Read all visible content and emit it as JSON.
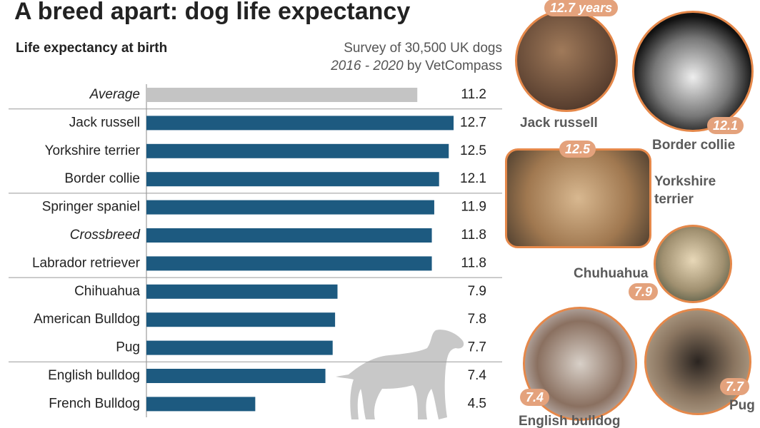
{
  "chart_data": {
    "type": "bar",
    "title": "A breed apart: dog life expectancy",
    "subtitle": "Life expectancy at birth",
    "source": "Survey of 30,500 UK dogs",
    "source_detail": "2016 - 2020",
    "source_org": "by VetCompass",
    "categories": [
      "Average",
      "Jack russell",
      "Yorkshire terrier",
      "Border collie",
      "Springer spaniel",
      "Crossbreed",
      "Labrador retriever",
      "Chihuahua",
      "American Bulldog",
      "Pug",
      "English bulldog",
      "French Bulldog"
    ],
    "values": [
      11.2,
      12.7,
      12.5,
      12.1,
      11.9,
      11.8,
      11.8,
      7.9,
      7.8,
      7.7,
      7.4,
      4.5
    ],
    "colors": [
      "#c4c4c4",
      "#1d5a80",
      "#1d5a80",
      "#1d5a80",
      "#1d5a80",
      "#1d5a80",
      "#1d5a80",
      "#1d5a80",
      "#1d5a80",
      "#1d5a80",
      "#1d5a80",
      "#1d5a80"
    ]
  },
  "photo_callouts": [
    {
      "name": "Jack russell",
      "badge": "12.7 years"
    },
    {
      "name": "Border collie",
      "badge": "12.1"
    },
    {
      "name": "Yorkshire terrier",
      "badge": "12.5"
    },
    {
      "name": "Chuhuahua",
      "badge": "7.9"
    },
    {
      "name": "English bulldog",
      "badge": "7.4"
    },
    {
      "name": "Pug",
      "badge": "7.7"
    }
  ]
}
